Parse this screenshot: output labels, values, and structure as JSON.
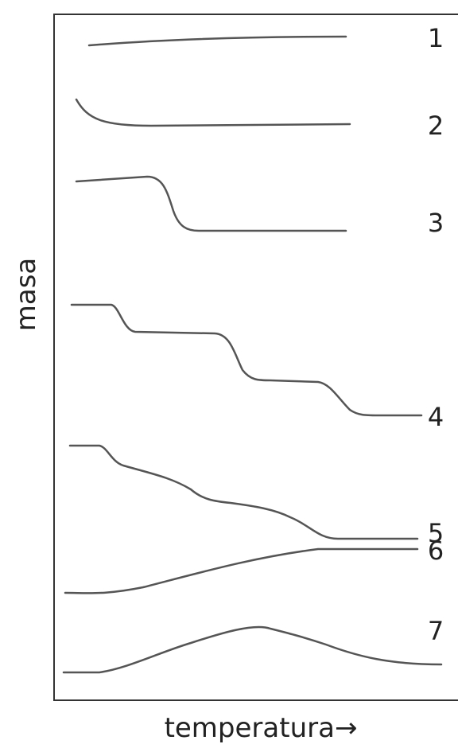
{
  "axes": {
    "y_label": "masa",
    "x_label": "temperatura→"
  },
  "curve_labels": [
    "1",
    "2",
    "3",
    "4",
    "5",
    "6",
    "7"
  ]
}
